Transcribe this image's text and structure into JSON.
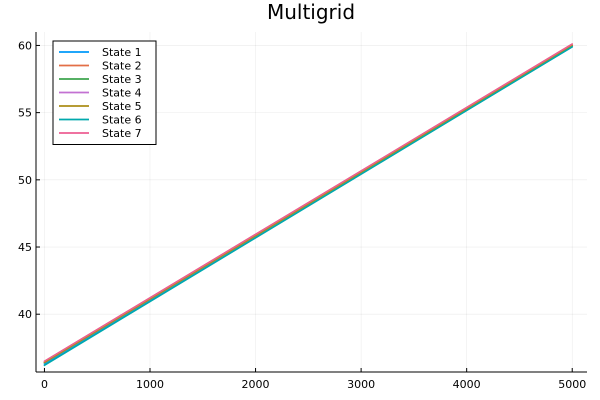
{
  "chart_data": {
    "type": "line",
    "title": "Multigrid",
    "xlabel": "",
    "ylabel": "",
    "xlim": [
      -80,
      5140
    ],
    "ylim": [
      35.7,
      61.0
    ],
    "x_ticks": [
      0,
      1000,
      2000,
      3000,
      4000,
      5000
    ],
    "x_tick_labels": [
      "0",
      "1000",
      "2000",
      "3000",
      "4000",
      "5000"
    ],
    "y_ticks": [
      40,
      45,
      50,
      55,
      60
    ],
    "y_tick_labels": [
      "40",
      "45",
      "50",
      "55",
      "60"
    ],
    "grid": true,
    "legend_position": "top-left",
    "series": [
      {
        "name": "State 1",
        "color": "#009AFA",
        "x": [
          0,
          5000
        ],
        "y": [
          36.3,
          59.9
        ]
      },
      {
        "name": "State 2",
        "color": "#E36F47",
        "x": [
          0,
          5000
        ],
        "y": [
          36.5,
          60.1
        ]
      },
      {
        "name": "State 3",
        "color": "#3EA44E",
        "x": [
          0,
          5000
        ],
        "y": [
          36.4,
          60.0
        ]
      },
      {
        "name": "State 4",
        "color": "#C371D2",
        "x": [
          0,
          5000
        ],
        "y": [
          36.4,
          60.0
        ]
      },
      {
        "name": "State 5",
        "color": "#AC8E18",
        "x": [
          0,
          5000
        ],
        "y": [
          36.4,
          60.0
        ]
      },
      {
        "name": "State 6",
        "color": "#00A9AD",
        "x": [
          0,
          5000
        ],
        "y": [
          36.2,
          59.9
        ]
      },
      {
        "name": "State 7",
        "color": "#ED5E93",
        "x": [
          0,
          5000
        ],
        "y": [
          36.5,
          60.1
        ]
      }
    ]
  }
}
